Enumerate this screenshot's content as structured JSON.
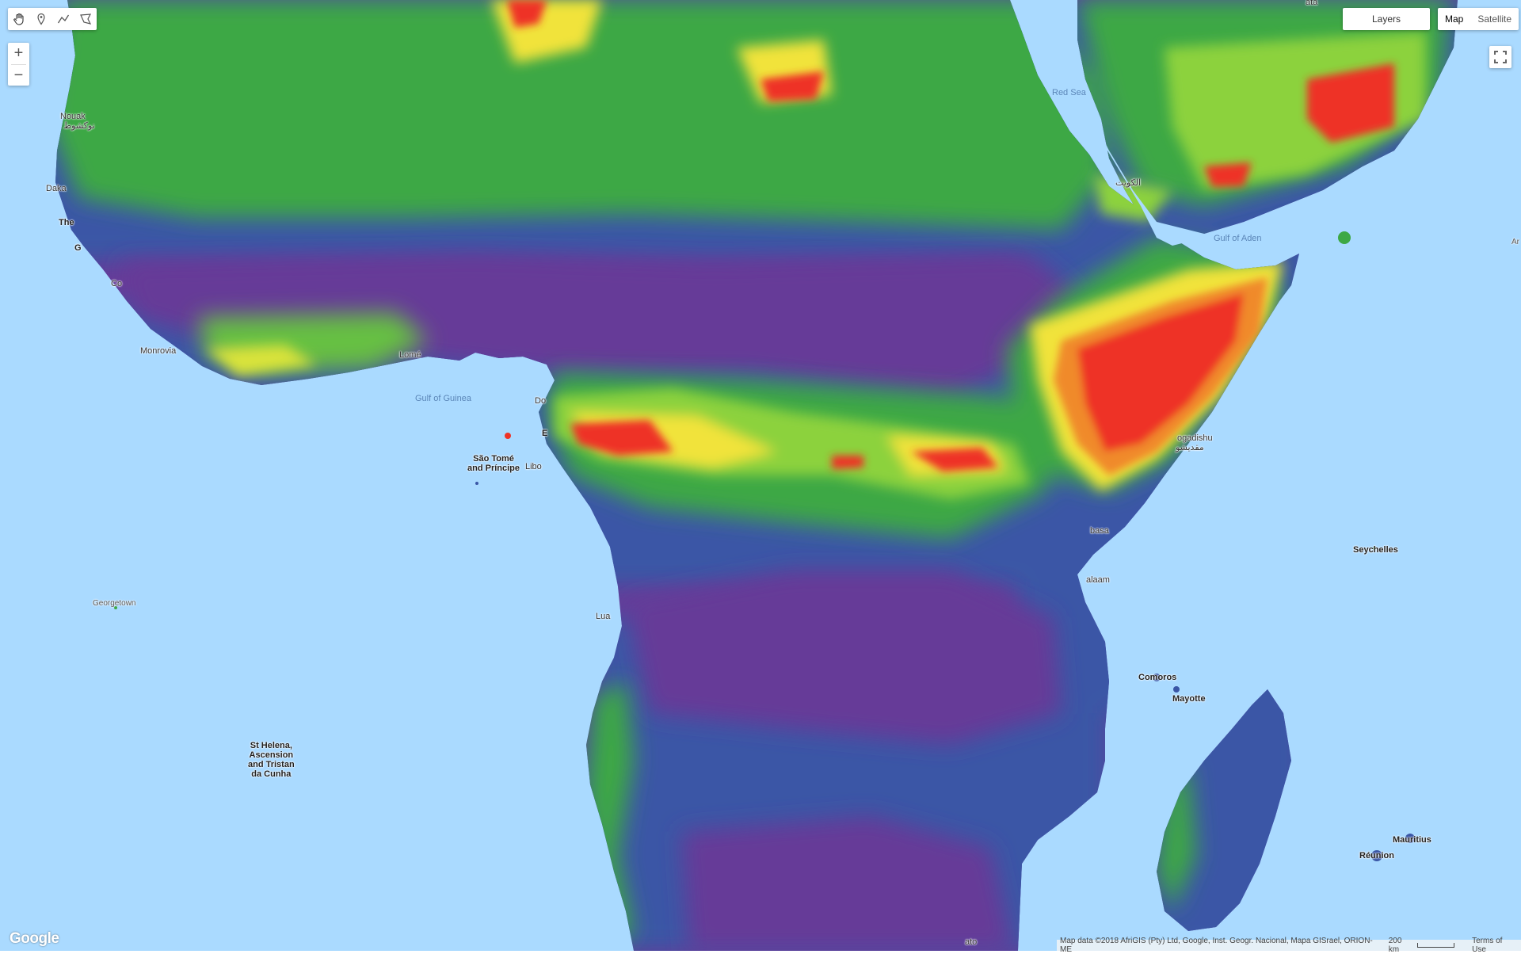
{
  "toolbar": {
    "tools": [
      {
        "name": "hand-icon"
      },
      {
        "name": "marker-icon"
      },
      {
        "name": "polyline-icon"
      },
      {
        "name": "polygon-icon"
      }
    ]
  },
  "zoom": {
    "in_label": "+",
    "out_label": "−"
  },
  "layers": {
    "label": "Layers"
  },
  "map_type": {
    "map_label": "Map",
    "satellite_label": "Satellite",
    "selected": "Map"
  },
  "footer": {
    "logo": "Google",
    "attribution": "Map data ©2018 AfriGIS (Pty) Ltd, Google, Inst. Geogr. Nacional, Mapa GISrael, ORION-ME",
    "scale": "200 km",
    "terms": "Terms of Use"
  },
  "colors": {
    "ocean": "#aadaff",
    "purple": "#6a3d9a",
    "blue": "#3a55a8",
    "green": "#3caa45",
    "lightgreen": "#7fcd3c",
    "yellow": "#f0e43a",
    "orange": "#f08a2a",
    "red": "#ee3226"
  },
  "labels": {
    "red_sea": "Red Sea",
    "gulf_aden": "Gulf of Aden",
    "gulf_guinea": "Gulf of Guinea",
    "nouakchott": "Nouak",
    "nouakchott_ar": "نوكشوط",
    "dakar": "Daka",
    "the": "The",
    "g": "G",
    "co": "Co",
    "monrovia": "Monrovia",
    "lome": "Lomé",
    "do": "Do",
    "e": "E",
    "sao_tome": "São Tomé\nand Príncipe",
    "libo": "Libo",
    "mogadishu": "ogadishu",
    "mogadishu_ar": "مقديشو",
    "mombasa": "basa",
    "dar": "alaam",
    "lua": "Lua",
    "seychelles": "Seychelles",
    "comoros": "Comoros",
    "mayotte": "Mayotte",
    "mauritius": "Mauritius",
    "reunion": "Réunion",
    "georgetown": "Georgetown",
    "st_helena": "St Helena,\nAscension\nand Tristan\nda Cunha",
    "kuwait": "الكويت",
    "tao": "ato",
    "ar": "Ar",
    "ata": "ata"
  }
}
